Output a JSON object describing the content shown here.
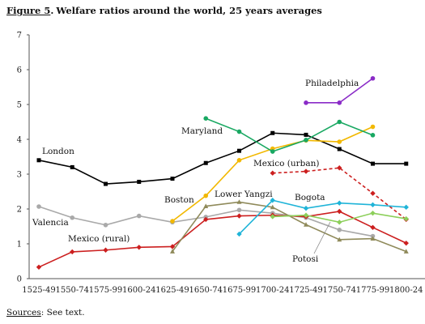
{
  "figure": {
    "label": "Figure 5",
    "title": "Welfare ratios around the world, 25 years averages"
  },
  "sources": {
    "label": "Sources",
    "text": "See text."
  },
  "chart_data": {
    "type": "line",
    "title": "Welfare ratios around the world, 25 years averages",
    "xlabel": "",
    "ylabel": "",
    "categories": [
      "1525-49",
      "1550-74",
      "1575-99",
      "1600-24",
      "1625-49",
      "1650-74",
      "1675-99",
      "1700-24",
      "1725-49",
      "1750-74",
      "1775-99",
      "1800-24"
    ],
    "ylim": [
      0,
      7
    ],
    "yticks": [
      0,
      1,
      2,
      3,
      4,
      5,
      6,
      7
    ],
    "grid": false,
    "legend": "inline labels",
    "series": [
      {
        "name": "London",
        "color": "#000000",
        "marker": "square",
        "dashed": false,
        "values": [
          3.4,
          3.2,
          2.72,
          2.78,
          2.87,
          3.32,
          3.67,
          4.18,
          4.13,
          3.72,
          3.3,
          3.3
        ]
      },
      {
        "name": "Valencia",
        "color": "#a9a9a9",
        "marker": "circle",
        "dashed": false,
        "values": [
          2.07,
          1.75,
          1.54,
          1.8,
          1.62,
          1.77,
          1.97,
          1.88,
          1.75,
          1.4,
          1.22,
          null
        ]
      },
      {
        "name": "Mexico (rural)",
        "color": "#cc1f1f",
        "marker": "diamond",
        "dashed": false,
        "values": [
          0.33,
          0.77,
          0.82,
          0.9,
          0.92,
          1.7,
          1.8,
          1.82,
          1.78,
          1.93,
          1.47,
          1.02
        ]
      },
      {
        "name": "Mexico (urban)",
        "color": "#cc1f1f",
        "marker": "diamond",
        "dashed": true,
        "values": [
          null,
          null,
          null,
          null,
          null,
          null,
          null,
          3.03,
          3.08,
          3.18,
          2.45,
          1.7
        ]
      },
      {
        "name": "Boston",
        "color": "#f2b800",
        "marker": "circle",
        "dashed": false,
        "values": [
          null,
          null,
          null,
          null,
          1.65,
          2.38,
          3.4,
          3.73,
          3.97,
          3.93,
          4.36,
          null
        ]
      },
      {
        "name": "Maryland",
        "color": "#19a862",
        "marker": "circle",
        "dashed": false,
        "values": [
          null,
          null,
          null,
          null,
          null,
          4.6,
          4.22,
          3.65,
          3.98,
          4.5,
          4.12,
          null
        ]
      },
      {
        "name": "Philadelphia",
        "color": "#8a2bc7",
        "marker": "circle",
        "dashed": false,
        "values": [
          null,
          null,
          null,
          null,
          null,
          null,
          null,
          null,
          5.05,
          5.05,
          5.75,
          null
        ]
      },
      {
        "name": "Lower Yangzi",
        "color": "#8f8a5a",
        "marker": "triangle",
        "dashed": false,
        "values": [
          null,
          null,
          null,
          null,
          0.78,
          2.08,
          2.2,
          2.05,
          1.55,
          1.12,
          1.15,
          0.78
        ]
      },
      {
        "name": "Bogota",
        "color": "#1fb4d8",
        "marker": "diamond",
        "dashed": false,
        "values": [
          null,
          null,
          null,
          null,
          null,
          null,
          1.28,
          2.25,
          2.02,
          2.17,
          2.12,
          2.05
        ]
      },
      {
        "name": "Potosi",
        "color": "#8ccf5a",
        "marker": "diamond",
        "dashed": false,
        "values": [
          null,
          null,
          null,
          null,
          null,
          null,
          null,
          1.78,
          1.82,
          1.62,
          1.88,
          1.72
        ]
      }
    ]
  }
}
